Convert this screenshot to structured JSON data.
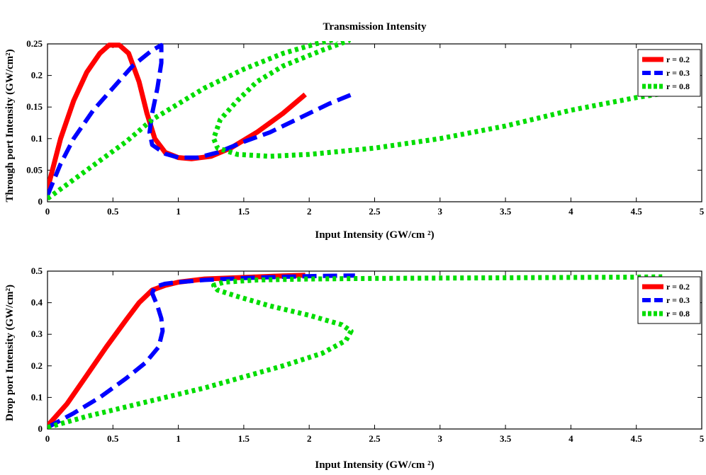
{
  "chart_data": [
    {
      "type": "line",
      "title": "Transmission Intensity",
      "xlabel": "Input Intensity (GW/cm ²)",
      "ylabel": "Through port Intensity  (GW/cm²)",
      "xlim": [
        0,
        5
      ],
      "ylim": [
        0,
        0.25
      ],
      "xticks": [
        "0",
        "0.5",
        "1",
        "1.5",
        "2",
        "2.5",
        "3",
        "3.5",
        "4",
        "4.5",
        "5"
      ],
      "yticks": [
        "0",
        "0.05",
        "0.1",
        "0.15",
        "0.2",
        "0.25"
      ],
      "grid": false,
      "legend": "top-right",
      "series": [
        {
          "name": "r = 0.2",
          "color": "#ff0000",
          "style": "solid",
          "points": [
            [
              0,
              0.02
            ],
            [
              0.1,
              0.1
            ],
            [
              0.2,
              0.16
            ],
            [
              0.3,
              0.205
            ],
            [
              0.4,
              0.235
            ],
            [
              0.47,
              0.248
            ],
            [
              0.55,
              0.248
            ],
            [
              0.62,
              0.235
            ],
            [
              0.7,
              0.19
            ],
            [
              0.76,
              0.14
            ],
            [
              0.82,
              0.1
            ],
            [
              0.9,
              0.078
            ],
            [
              1.0,
              0.07
            ],
            [
              1.1,
              0.068
            ],
            [
              1.25,
              0.072
            ],
            [
              1.4,
              0.085
            ],
            [
              1.6,
              0.11
            ],
            [
              1.8,
              0.14
            ],
            [
              1.97,
              0.17
            ]
          ]
        },
        {
          "name": "r = 0.3",
          "color": "#0000ff",
          "style": "dashed",
          "points": [
            [
              0,
              0.01
            ],
            [
              0.1,
              0.06
            ],
            [
              0.2,
              0.1
            ],
            [
              0.35,
              0.145
            ],
            [
              0.5,
              0.18
            ],
            [
              0.65,
              0.215
            ],
            [
              0.8,
              0.24
            ],
            [
              0.87,
              0.248
            ],
            [
              0.87,
              0.22
            ],
            [
              0.84,
              0.18
            ],
            [
              0.8,
              0.14
            ],
            [
              0.78,
              0.11
            ],
            [
              0.8,
              0.09
            ],
            [
              0.9,
              0.076
            ],
            [
              1.0,
              0.07
            ],
            [
              1.15,
              0.07
            ],
            [
              1.3,
              0.078
            ],
            [
              1.5,
              0.095
            ],
            [
              1.7,
              0.11
            ],
            [
              1.95,
              0.135
            ],
            [
              2.15,
              0.155
            ],
            [
              2.35,
              0.172
            ]
          ]
        },
        {
          "name": "r = 0.8",
          "color": "#00dd00",
          "style": "dotted",
          "points": [
            [
              0,
              0.005
            ],
            [
              0.2,
              0.035
            ],
            [
              0.4,
              0.065
            ],
            [
              0.6,
              0.095
            ],
            [
              0.8,
              0.13
            ],
            [
              1.0,
              0.155
            ],
            [
              1.2,
              0.18
            ],
            [
              1.5,
              0.21
            ],
            [
              1.8,
              0.235
            ],
            [
              2.05,
              0.25
            ],
            [
              2.3,
              0.262
            ],
            [
              2.3,
              0.255
            ],
            [
              2.1,
              0.24
            ],
            [
              1.8,
              0.215
            ],
            [
              1.6,
              0.19
            ],
            [
              1.45,
              0.16
            ],
            [
              1.32,
              0.13
            ],
            [
              1.27,
              0.1
            ],
            [
              1.3,
              0.085
            ],
            [
              1.45,
              0.075
            ],
            [
              1.7,
              0.072
            ],
            [
              2.0,
              0.075
            ],
            [
              2.5,
              0.085
            ],
            [
              3.0,
              0.1
            ],
            [
              3.5,
              0.12
            ],
            [
              4.0,
              0.145
            ],
            [
              4.5,
              0.165
            ],
            [
              4.72,
              0.172
            ]
          ]
        }
      ]
    },
    {
      "type": "line",
      "title": "",
      "xlabel": "Input Intensity (GW/cm ²)",
      "ylabel": "Drop port Intensity  (GW/cm²)",
      "xlim": [
        0,
        5
      ],
      "ylim": [
        0,
        0.5
      ],
      "xticks": [
        "0",
        "0.5",
        "1",
        "1.5",
        "2",
        "2.5",
        "3",
        "3.5",
        "4",
        "4.5",
        "5"
      ],
      "yticks": [
        "0",
        "0.1",
        "0.2",
        "0.3",
        "0.4",
        "0.5"
      ],
      "grid": false,
      "legend": "top-right",
      "series": [
        {
          "name": "r = 0.2",
          "color": "#ff0000",
          "style": "solid",
          "points": [
            [
              0,
              0.01
            ],
            [
              0.15,
              0.08
            ],
            [
              0.3,
              0.17
            ],
            [
              0.45,
              0.26
            ],
            [
              0.6,
              0.345
            ],
            [
              0.7,
              0.4
            ],
            [
              0.8,
              0.44
            ],
            [
              0.9,
              0.455
            ],
            [
              1.0,
              0.465
            ],
            [
              1.2,
              0.475
            ],
            [
              1.5,
              0.48
            ],
            [
              1.8,
              0.485
            ],
            [
              1.97,
              0.487
            ]
          ]
        },
        {
          "name": "r = 0.3",
          "color": "#0000ff",
          "style": "dashed",
          "points": [
            [
              0,
              0.005
            ],
            [
              0.2,
              0.05
            ],
            [
              0.4,
              0.1
            ],
            [
              0.6,
              0.16
            ],
            [
              0.75,
              0.21
            ],
            [
              0.85,
              0.26
            ],
            [
              0.88,
              0.31
            ],
            [
              0.87,
              0.35
            ],
            [
              0.84,
              0.39
            ],
            [
              0.8,
              0.43
            ],
            [
              0.82,
              0.45
            ],
            [
              0.9,
              0.46
            ],
            [
              1.0,
              0.465
            ],
            [
              1.2,
              0.472
            ],
            [
              1.5,
              0.478
            ],
            [
              1.8,
              0.482
            ],
            [
              2.1,
              0.485
            ],
            [
              2.35,
              0.486
            ]
          ]
        },
        {
          "name": "r = 0.8",
          "color": "#00dd00",
          "style": "dotted",
          "points": [
            [
              0,
              0.005
            ],
            [
              0.3,
              0.04
            ],
            [
              0.6,
              0.07
            ],
            [
              0.9,
              0.1
            ],
            [
              1.2,
              0.13
            ],
            [
              1.5,
              0.165
            ],
            [
              1.8,
              0.2
            ],
            [
              2.1,
              0.24
            ],
            [
              2.28,
              0.28
            ],
            [
              2.32,
              0.31
            ],
            [
              2.25,
              0.33
            ],
            [
              2.0,
              0.36
            ],
            [
              1.7,
              0.39
            ],
            [
              1.45,
              0.42
            ],
            [
              1.3,
              0.44
            ],
            [
              1.27,
              0.455
            ],
            [
              1.35,
              0.465
            ],
            [
              1.6,
              0.472
            ],
            [
              2.0,
              0.475
            ],
            [
              2.5,
              0.477
            ],
            [
              3.0,
              0.478
            ],
            [
              3.5,
              0.479
            ],
            [
              4.0,
              0.48
            ],
            [
              4.5,
              0.481
            ],
            [
              4.72,
              0.482
            ]
          ]
        }
      ]
    }
  ]
}
